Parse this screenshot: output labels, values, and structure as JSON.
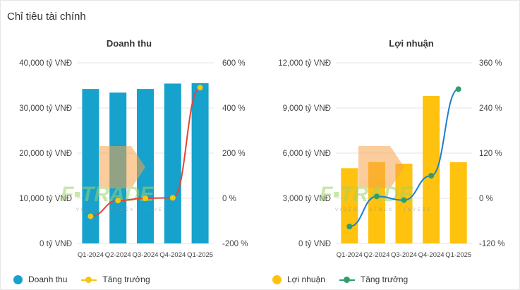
{
  "page": {
    "heading": "Chỉ tiêu tài chính"
  },
  "watermark": {
    "text": "F▪TRADE",
    "subtext": "VIDEO · STOCK · INVEST"
  },
  "chart_data": [
    {
      "type": "bar",
      "title": "Doanh thu",
      "categories": [
        "Q1-2024",
        "Q2-2024",
        "Q3-2024",
        "Q4-2024",
        "Q1-2025"
      ],
      "series": [
        {
          "name": "Doanh thu",
          "axis": "left",
          "kind": "bar",
          "values": [
            34200,
            33400,
            34200,
            35400,
            35500
          ],
          "color": "#16a2cc"
        },
        {
          "name": "Tăng trưởng",
          "axis": "right",
          "kind": "line",
          "values": [
            -80,
            -10,
            0,
            2,
            490
          ],
          "color": "#f2c811",
          "line_color": "#e0463a"
        }
      ],
      "left_axis": {
        "ticks": [
          "40,000 tỷ VNĐ",
          "30,000 tỷ VNĐ",
          "20,000 tỷ VNĐ",
          "10,000 tỷ VNĐ",
          "0 tỷ VNĐ"
        ],
        "range": [
          0,
          40000
        ]
      },
      "right_axis": {
        "ticks": [
          "600 %",
          "400 %",
          "200 %",
          "0 %",
          "-200 %"
        ],
        "range": [
          -200,
          600
        ]
      },
      "grid": true,
      "legend": "bottom-left"
    },
    {
      "type": "bar",
      "title": "Lợi nhuận",
      "categories": [
        "Q1-2024",
        "Q2-2024",
        "Q3-2024",
        "Q4-2024",
        "Q1-2025"
      ],
      "series": [
        {
          "name": "Lợi nhuận",
          "axis": "left",
          "kind": "bar",
          "values": [
            5000,
            5400,
            5300,
            9800,
            5400
          ],
          "color": "#ffc20e"
        },
        {
          "name": "Tăng trưởng",
          "axis": "right",
          "kind": "line",
          "values": [
            -75,
            5,
            -5,
            60,
            290
          ],
          "color": "#2e9e6b",
          "line_color": "#1a7fd0",
          "line_color_mid": "#2e9e6b"
        }
      ],
      "left_axis": {
        "ticks": [
          "12,000 tỷ VNĐ",
          "9,000 tỷ VNĐ",
          "6,000 tỷ VNĐ",
          "3,000 tỷ VNĐ",
          "0 tỷ VNĐ"
        ],
        "range": [
          0,
          12000
        ]
      },
      "right_axis": {
        "ticks": [
          "360 %",
          "240 %",
          "120 %",
          "0 %",
          "-120 %"
        ],
        "range": [
          -120,
          360
        ]
      },
      "grid": true,
      "legend": "bottom-left"
    }
  ],
  "legend": [
    {
      "label": "Doanh thu",
      "color": "#16a2cc",
      "kind": "dot"
    },
    {
      "label": "Tăng trưởng",
      "color": "#f2c811",
      "kind": "line"
    },
    {
      "label": "Lợi nhuận",
      "color": "#ffc20e",
      "kind": "dot"
    },
    {
      "label": "Tăng trưởng",
      "color": "#2e9e6b",
      "kind": "line"
    }
  ]
}
